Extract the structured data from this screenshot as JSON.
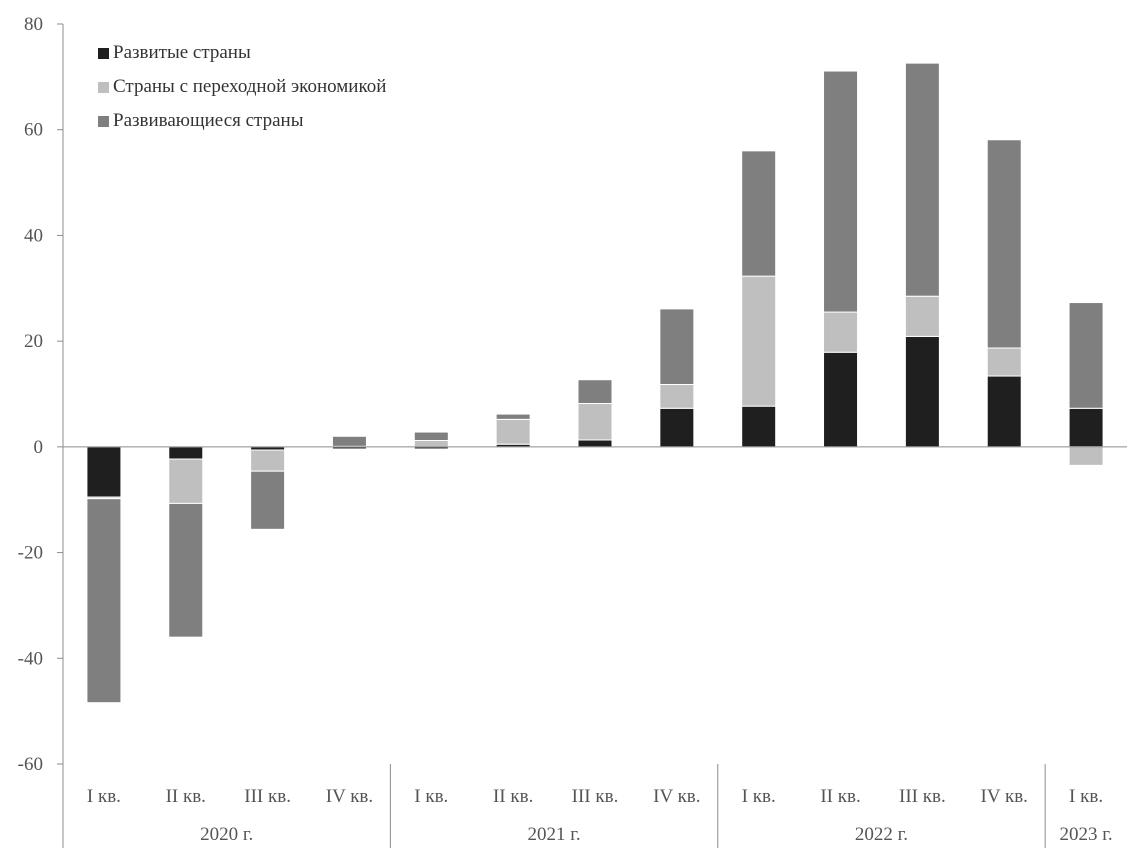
{
  "chart_data": {
    "type": "bar",
    "stacked": true,
    "categories": [
      "I кв.",
      "II кв.",
      "III кв.",
      "IV кв.",
      "I кв.",
      "II кв.",
      "III кв.",
      "IV кв.",
      "I кв.",
      "II кв.",
      "III кв.",
      "IV кв.",
      "I кв."
    ],
    "groups": [
      {
        "label": "2020 г.",
        "count": 4
      },
      {
        "label": "2021 г.",
        "count": 4
      },
      {
        "label": "2022 г.",
        "count": 4
      },
      {
        "label": "2023 г.",
        "count": 1
      }
    ],
    "series": [
      {
        "name": "Развитые страны",
        "color": "#1f1f1f",
        "values": [
          -9.5,
          -2.3,
          -0.6,
          -0.4,
          -0.4,
          0.5,
          1.3,
          7.3,
          7.7,
          17.9,
          20.9,
          13.4,
          7.3
        ]
      },
      {
        "name": "Страны с переходной экономикой",
        "color": "#bfbfbf",
        "values": [
          -0.3,
          -8.4,
          -4.0,
          0.1,
          1.2,
          4.7,
          6.9,
          4.5,
          24.6,
          7.6,
          7.6,
          5.3,
          -3.5
        ]
      },
      {
        "name": "Развивающиеся страны",
        "color": "#7f7f7f",
        "values": [
          -38.6,
          -25.3,
          -11.0,
          1.9,
          1.6,
          1.0,
          4.5,
          14.3,
          23.7,
          45.6,
          44.1,
          39.4,
          20.0
        ]
      }
    ],
    "ylim": [
      -60,
      80
    ],
    "yticks": [
      -60,
      -40,
      -20,
      0,
      20,
      40,
      60,
      80
    ],
    "legend_position": "top-left",
    "grid": false
  }
}
